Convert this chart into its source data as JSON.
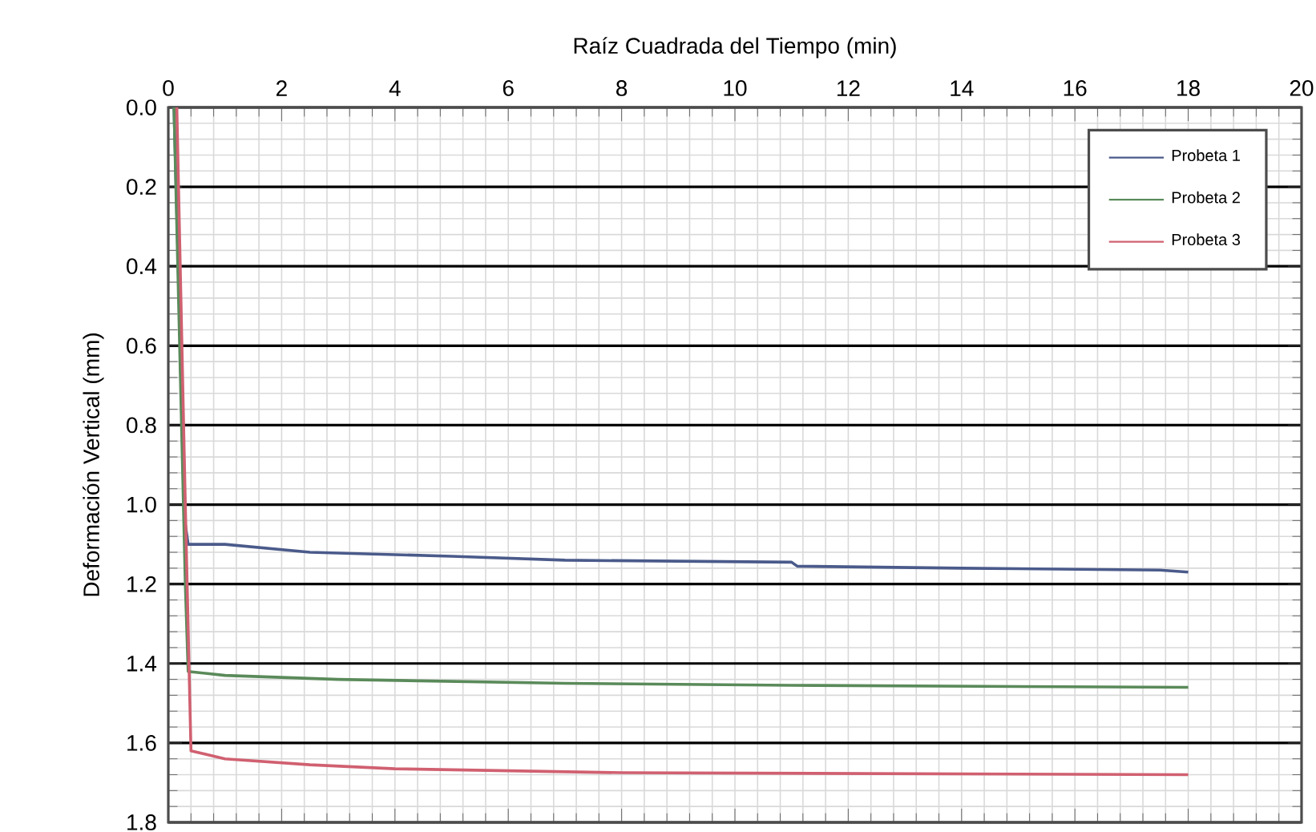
{
  "chart_data": {
    "type": "line",
    "xlabel": "Raíz Cuadrada del Tiempo (min)",
    "ylabel": "Deformación Vertical (mm)",
    "xlim": [
      0,
      20
    ],
    "xticks": [
      0,
      2,
      4,
      6,
      8,
      10,
      12,
      14,
      16,
      18,
      20
    ],
    "ylim": [
      1.8,
      0
    ],
    "yticks": [
      {
        "value": 0,
        "label": "0.0"
      },
      0.2,
      0.4,
      0.6,
      0.8,
      {
        "value": 1,
        "label": "1.0"
      },
      1.2,
      1.4,
      1.6,
      1.8
    ],
    "grid": true,
    "legend": "top right",
    "marker": "none",
    "line_style": "solid",
    "series": [
      {
        "name": "Probeta 1",
        "color": "#4a5a8a",
        "x": [
          0.1,
          0.3,
          0.35,
          1,
          2.5,
          5,
          7,
          11,
          11.1,
          14,
          17.5,
          18
        ],
        "values": [
          0,
          1.05,
          1.1,
          1.1,
          1.12,
          1.13,
          1.14,
          1.145,
          1.155,
          1.16,
          1.165,
          1.17
        ]
      },
      {
        "name": "Probeta 2",
        "color": "#5a8a5a",
        "x": [
          0.1,
          0.3,
          0.35,
          1,
          3,
          7,
          11,
          18
        ],
        "values": [
          0,
          1.2,
          1.42,
          1.43,
          1.44,
          1.45,
          1.455,
          1.46
        ]
      },
      {
        "name": "Probeta 3",
        "color": "#d06070",
        "x": [
          0.15,
          0.3,
          0.4,
          1,
          2.5,
          4,
          8,
          18
        ],
        "values": [
          0,
          1.0,
          1.62,
          1.64,
          1.655,
          1.665,
          1.675,
          1.68
        ]
      }
    ]
  }
}
